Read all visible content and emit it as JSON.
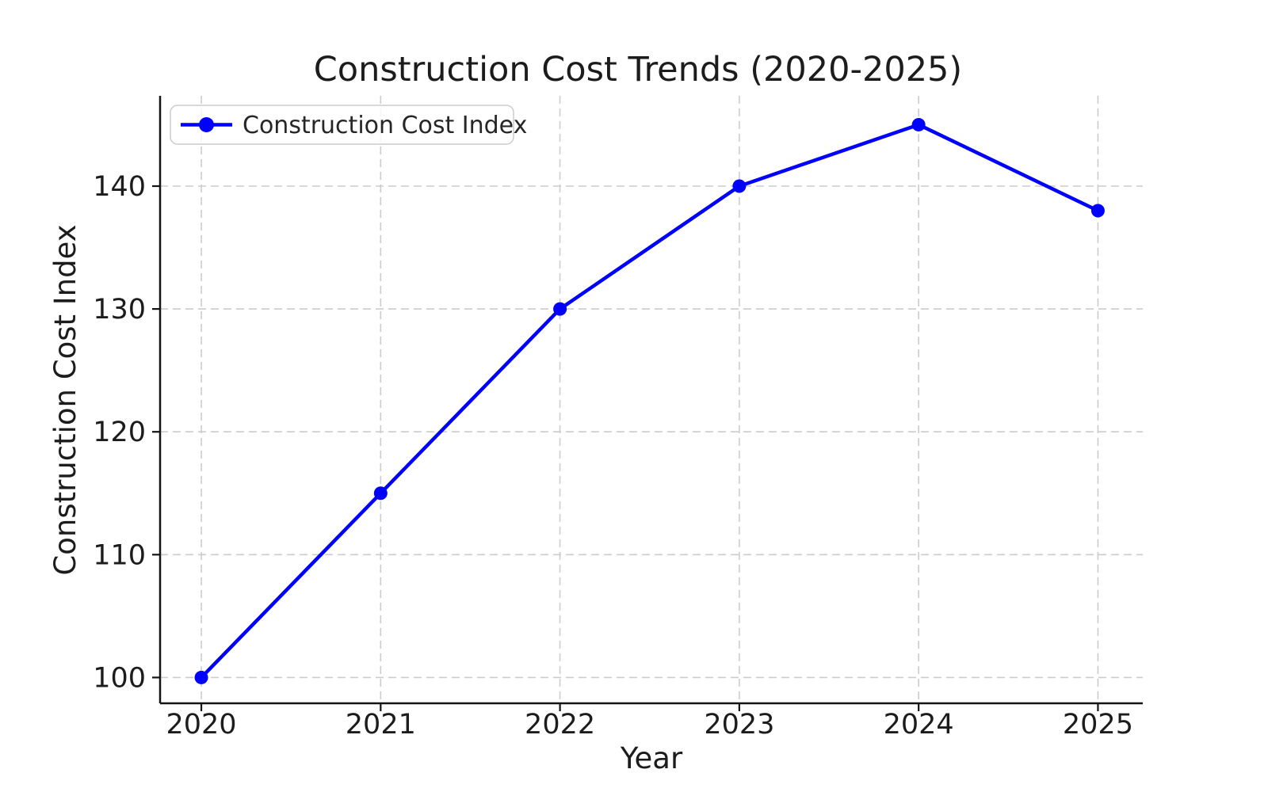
{
  "chart_data": {
    "type": "line",
    "title": "Construction Cost Trends (2020-2025)",
    "xlabel": "Year",
    "ylabel": "Construction Cost Index",
    "categories": [
      2020,
      2021,
      2022,
      2023,
      2024,
      2025
    ],
    "series": [
      {
        "name": "Construction Cost Index",
        "color": "#0000ff",
        "values": [
          100,
          115,
          130,
          140,
          145,
          138
        ]
      }
    ],
    "xticks": [
      "2020",
      "2021",
      "2022",
      "2023",
      "2024",
      "2025"
    ],
    "yticks": [
      "100",
      "110",
      "120",
      "130",
      "140"
    ],
    "xlim": [
      2019.77,
      2025.25
    ],
    "ylim": [
      97.9,
      147.35
    ],
    "grid": "dashed",
    "legend_position": "upper-left",
    "accent_color": "#0000ff",
    "grid_color": "#cccccc",
    "text_color": "#1c1c1c"
  }
}
